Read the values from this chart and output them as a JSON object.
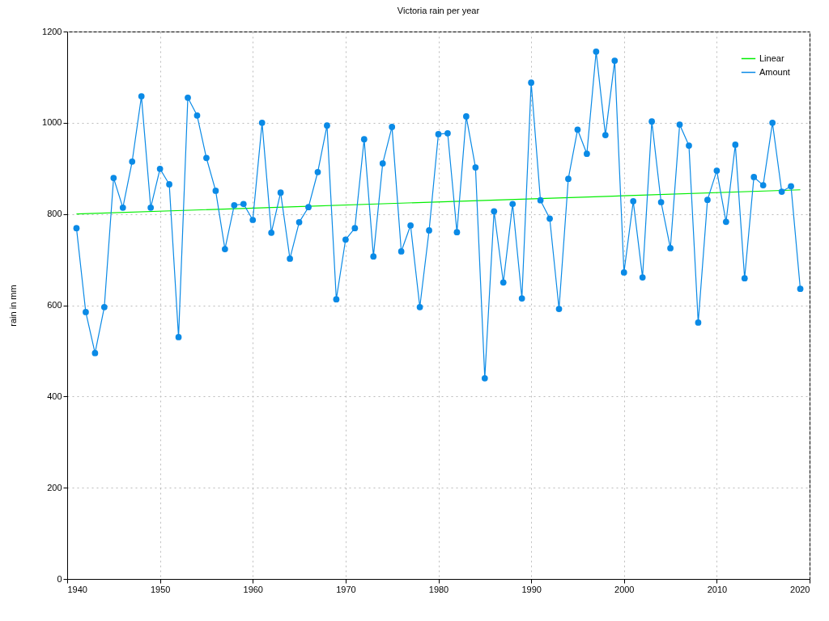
{
  "chart_data": {
    "type": "line",
    "title": "Victoria rain per year",
    "ylabel": "rain in mm",
    "xlim": [
      1940,
      2020
    ],
    "xticks": [
      1940,
      1950,
      1960,
      1970,
      1980,
      1990,
      2000,
      2010,
      2020
    ],
    "ylim": [
      0,
      1200
    ],
    "yticks": [
      0,
      200,
      400,
      600,
      800,
      1000,
      1200
    ],
    "grid": true,
    "legend": "top right",
    "marker": "circle",
    "series": [
      {
        "name": "Linear",
        "marker": "none",
        "color": "#00ee00",
        "x": [
          1941,
          2019
        ],
        "values": [
          800,
          853
        ]
      },
      {
        "name": "Amount",
        "color": "#0a8ae6",
        "x": [
          1941,
          1942,
          1943,
          1944,
          1945,
          1946,
          1947,
          1948,
          1949,
          1950,
          1951,
          1952,
          1953,
          1954,
          1955,
          1956,
          1957,
          1958,
          1959,
          1960,
          1961,
          1962,
          1963,
          1964,
          1965,
          1966,
          1967,
          1968,
          1969,
          1970,
          1971,
          1972,
          1973,
          1974,
          1975,
          1976,
          1977,
          1978,
          1979,
          1980,
          1981,
          1982,
          1983,
          1984,
          1985,
          1986,
          1987,
          1988,
          1989,
          1990,
          1991,
          1992,
          1993,
          1994,
          1995,
          1996,
          1997,
          1998,
          1999,
          2000,
          2001,
          2002,
          2003,
          2004,
          2005,
          2006,
          2007,
          2008,
          2009,
          2010,
          2011,
          2012,
          2013,
          2014,
          2015,
          2016,
          2017,
          2018,
          2019
        ],
        "values": [
          769,
          585,
          495,
          596,
          879,
          814,
          915,
          1058,
          814,
          899,
          865,
          530,
          1055,
          1016,
          923,
          851,
          723,
          819,
          822,
          787,
          1000,
          759,
          847,
          702,
          782,
          815,
          892,
          994,
          613,
          744,
          769,
          964,
          707,
          911,
          991,
          718,
          775,
          596,
          764,
          975,
          977,
          760,
          1014,
          902,
          440,
          806,
          650,
          822,
          615,
          1088,
          830,
          790,
          592,
          877,
          985,
          932,
          1156,
          973,
          1136,
          672,
          828,
          661,
          1003,
          826,
          725,
          996,
          950,
          562,
          831,
          895,
          783,
          952,
          659,
          881,
          863,
          1000,
          849,
          861,
          636
        ]
      }
    ]
  }
}
